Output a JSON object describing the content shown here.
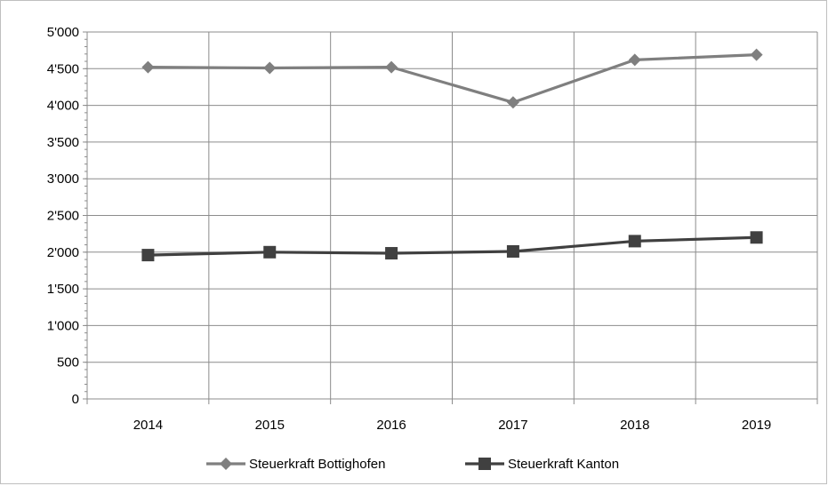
{
  "chart_data": {
    "type": "line",
    "categories": [
      "2014",
      "2015",
      "2016",
      "2017",
      "2018",
      "2019"
    ],
    "y_ticks": [
      "0",
      "500",
      "1'000",
      "1'500",
      "2'000",
      "2'500",
      "3'000",
      "3'500",
      "4'000",
      "4'500",
      "5'000"
    ],
    "ylim": [
      0,
      5000
    ],
    "grid": true,
    "legend_position": "bottom",
    "series": [
      {
        "name": "Steuerkraft Bottighofen",
        "values": [
          4520,
          4510,
          4520,
          4040,
          4620,
          4690
        ],
        "marker": "diamond",
        "color": "#7f7f7f"
      },
      {
        "name": "Steuerkraft Kanton",
        "values": [
          1960,
          2000,
          1985,
          2010,
          2150,
          2200
        ],
        "marker": "square",
        "color": "#404040"
      }
    ]
  }
}
